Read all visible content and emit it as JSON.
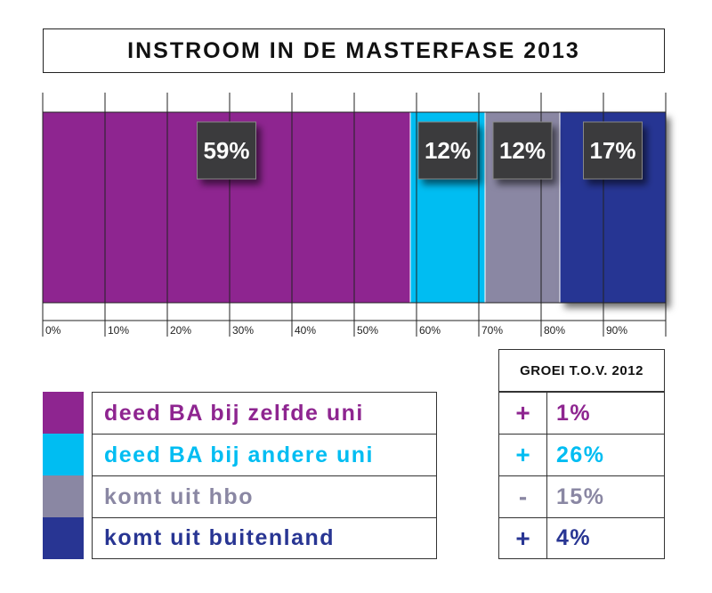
{
  "chart_data": {
    "type": "bar",
    "orientation": "horizontal-stacked",
    "title": "INSTROOM IN DE MASTERFASE 2013",
    "xlim": [
      0,
      100
    ],
    "grid": true,
    "ticks": [
      "0%",
      "10%",
      "20%",
      "30%",
      "40%",
      "50%",
      "60%",
      "70%",
      "80%",
      "90%"
    ],
    "tick_values": [
      0,
      10,
      20,
      30,
      40,
      50,
      60,
      70,
      80,
      90
    ],
    "series": [
      {
        "name": "deed BA bij zelfde uni",
        "value": 59,
        "label": "59%",
        "color": "#8e2590"
      },
      {
        "name": "deed BA bij andere uni",
        "value": 12,
        "label": "12%",
        "color": "#00bdf2"
      },
      {
        "name": "komt uit hbo",
        "value": 12,
        "label": "12%",
        "color": "#8a87a3"
      },
      {
        "name": "komt uit buitenland",
        "value": 17,
        "label": "17%",
        "color": "#283593"
      }
    ]
  },
  "growth": {
    "header": "GROEI T.O.V. 2012",
    "rows": [
      {
        "sign": "+",
        "value": "1%",
        "color": "#8e2590"
      },
      {
        "sign": "+",
        "value": "26%",
        "color": "#00bdf2"
      },
      {
        "sign": "-",
        "value": "15%",
        "color": "#8a87a3"
      },
      {
        "sign": "+",
        "value": "4%",
        "color": "#283593"
      }
    ]
  }
}
